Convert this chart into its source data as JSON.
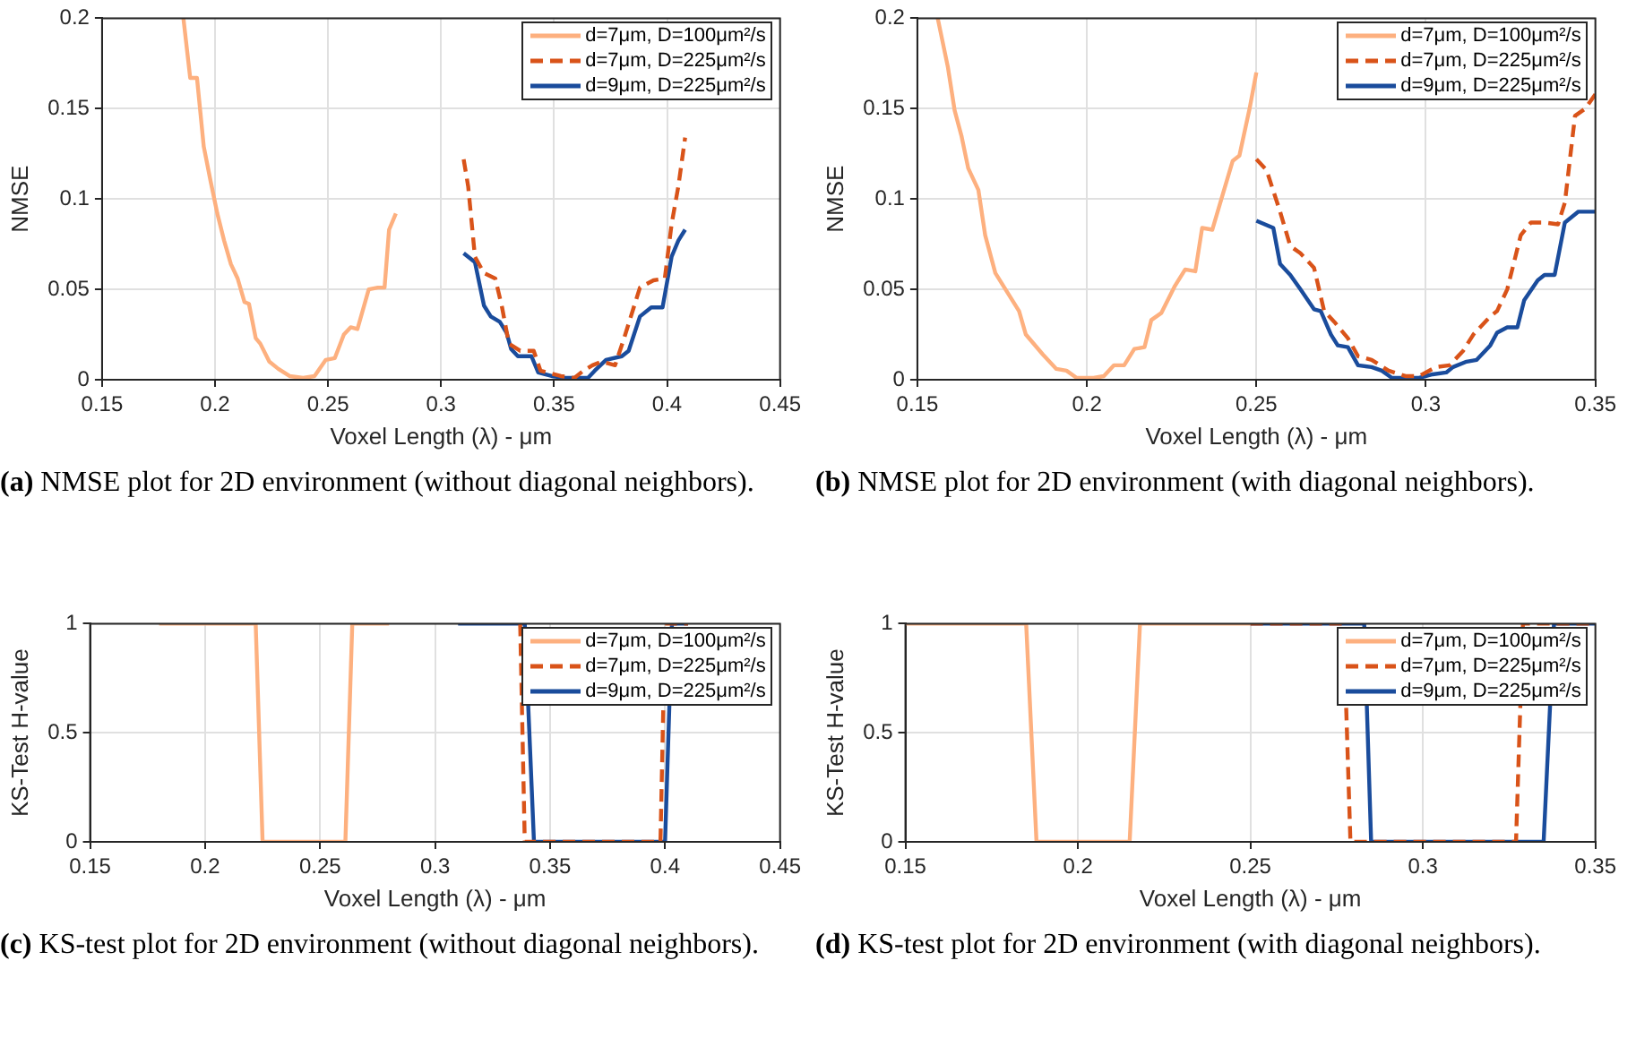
{
  "chart_data": [
    {
      "type": "line",
      "xlabel": "Voxel Length (λ) - μm",
      "ylabel": "NMSE",
      "xlim": [
        0.15,
        0.45
      ],
      "xticks": [
        0.15,
        0.2,
        0.25,
        0.3,
        0.35,
        0.4,
        0.45
      ],
      "ylim": [
        0,
        0.2
      ],
      "yticks": [
        0,
        0.05,
        0.1,
        0.15,
        0.2
      ],
      "grid": true,
      "legend": "top right",
      "annotations": [
        "(a) NMSE plot for 2D environment (without diagonal neighbors)."
      ],
      "series": [
        {
          "name": "d=7μm, D=100μm²/s",
          "color": "#fdb07f",
          "x": [
            0.186,
            0.189,
            0.192,
            0.195,
            0.198,
            0.201,
            0.204,
            0.207,
            0.21,
            0.213,
            0.215,
            0.218,
            0.22,
            0.224,
            0.228,
            0.233,
            0.239,
            0.244,
            0.249,
            0.253,
            0.257,
            0.26,
            0.263,
            0.268,
            0.272,
            0.275,
            0.277,
            0.28
          ],
          "values": [
            0.2,
            0.167,
            0.167,
            0.129,
            0.11,
            0.092,
            0.077,
            0.064,
            0.056,
            0.043,
            0.042,
            0.023,
            0.02,
            0.01,
            0.006,
            0.002,
            0.001,
            0.002,
            0.011,
            0.012,
            0.025,
            0.029,
            0.028,
            0.05,
            0.051,
            0.051,
            0.083,
            0.092
          ]
        },
        {
          "name": "d=7μm, D=225μm²/s",
          "color": "#d95319",
          "line_style": "dashed",
          "x": [
            0.31,
            0.312,
            0.315,
            0.319,
            0.324,
            0.327,
            0.33,
            0.335,
            0.341,
            0.344,
            0.353,
            0.359,
            0.363,
            0.367,
            0.371,
            0.377,
            0.381,
            0.388,
            0.394,
            0.399,
            0.402,
            0.405,
            0.408
          ],
          "values": [
            0.122,
            0.107,
            0.068,
            0.059,
            0.056,
            0.04,
            0.02,
            0.016,
            0.016,
            0.005,
            0.002,
            0.001,
            0.005,
            0.008,
            0.01,
            0.008,
            0.023,
            0.051,
            0.055,
            0.056,
            0.086,
            0.107,
            0.134
          ]
        },
        {
          "name": "d=9μm, D=225μm²/s",
          "color": "#1a4c9c",
          "x": [
            0.31,
            0.315,
            0.319,
            0.322,
            0.326,
            0.329,
            0.331,
            0.334,
            0.34,
            0.343,
            0.349,
            0.355,
            0.365,
            0.368,
            0.373,
            0.38,
            0.383,
            0.388,
            0.393,
            0.398,
            0.402,
            0.405,
            0.408
          ],
          "values": [
            0.07,
            0.065,
            0.041,
            0.035,
            0.032,
            0.026,
            0.017,
            0.013,
            0.013,
            0.004,
            0.002,
            0.001,
            0.001,
            0.005,
            0.011,
            0.013,
            0.016,
            0.035,
            0.04,
            0.04,
            0.068,
            0.077,
            0.083
          ]
        }
      ]
    },
    {
      "type": "line",
      "xlabel": "Voxel Length (λ) - μm",
      "ylabel": "NMSE",
      "xlim": [
        0.15,
        0.35
      ],
      "xticks": [
        0.15,
        0.2,
        0.25,
        0.3,
        0.35
      ],
      "ylim": [
        0,
        0.2
      ],
      "yticks": [
        0,
        0.05,
        0.1,
        0.15,
        0.2
      ],
      "grid": true,
      "legend": "top right",
      "annotations": [
        "(b) NMSE plot for 2D environment (with diagonal neighbors)."
      ],
      "series": [
        {
          "name": "d=7μm, D=100μm²/s",
          "color": "#fdb07f",
          "x": [
            0.156,
            0.159,
            0.161,
            0.163,
            0.165,
            0.168,
            0.17,
            0.173,
            0.176,
            0.18,
            0.182,
            0.187,
            0.191,
            0.194,
            0.197,
            0.202,
            0.205,
            0.208,
            0.211,
            0.214,
            0.217,
            0.219,
            0.222,
            0.226,
            0.229,
            0.232,
            0.234,
            0.237,
            0.24,
            0.243,
            0.245,
            0.248,
            0.25
          ],
          "values": [
            0.2,
            0.173,
            0.149,
            0.135,
            0.117,
            0.105,
            0.08,
            0.059,
            0.05,
            0.038,
            0.025,
            0.014,
            0.006,
            0.005,
            0.001,
            0.001,
            0.002,
            0.008,
            0.008,
            0.017,
            0.018,
            0.033,
            0.037,
            0.052,
            0.061,
            0.06,
            0.084,
            0.083,
            0.102,
            0.121,
            0.124,
            0.15,
            0.17
          ]
        },
        {
          "name": "d=7μm, D=225μm²/s",
          "color": "#d95319",
          "line_style": "dashed",
          "x": [
            0.25,
            0.253,
            0.257,
            0.26,
            0.263,
            0.267,
            0.27,
            0.273,
            0.277,
            0.28,
            0.284,
            0.289,
            0.294,
            0.298,
            0.303,
            0.307,
            0.311,
            0.314,
            0.319,
            0.321,
            0.324,
            0.328,
            0.331,
            0.335,
            0.339,
            0.341,
            0.344,
            0.347,
            0.35
          ],
          "values": [
            0.122,
            0.116,
            0.093,
            0.074,
            0.07,
            0.062,
            0.038,
            0.032,
            0.023,
            0.013,
            0.011,
            0.005,
            0.002,
            0.002,
            0.007,
            0.008,
            0.016,
            0.025,
            0.035,
            0.038,
            0.05,
            0.08,
            0.087,
            0.087,
            0.086,
            0.098,
            0.146,
            0.15,
            0.158
          ]
        },
        {
          "name": "d=9μm, D=225μm²/s",
          "color": "#1a4c9c",
          "x": [
            0.25,
            0.255,
            0.257,
            0.26,
            0.263,
            0.267,
            0.269,
            0.272,
            0.274,
            0.277,
            0.28,
            0.284,
            0.287,
            0.29,
            0.293,
            0.298,
            0.302,
            0.306,
            0.308,
            0.312,
            0.315,
            0.319,
            0.321,
            0.324,
            0.327,
            0.329,
            0.333,
            0.335,
            0.338,
            0.341,
            0.345,
            0.35
          ],
          "values": [
            0.088,
            0.084,
            0.064,
            0.058,
            0.05,
            0.039,
            0.038,
            0.025,
            0.019,
            0.018,
            0.008,
            0.007,
            0.005,
            0.001,
            0.001,
            0.001,
            0.003,
            0.004,
            0.007,
            0.01,
            0.011,
            0.019,
            0.026,
            0.029,
            0.029,
            0.044,
            0.055,
            0.058,
            0.058,
            0.087,
            0.093,
            0.093
          ]
        }
      ]
    },
    {
      "type": "line",
      "xlabel": "Voxel Length (λ) - μm",
      "ylabel": "KS-Test H-value",
      "xlim": [
        0.15,
        0.45
      ],
      "xticks": [
        0.15,
        0.2,
        0.25,
        0.3,
        0.35,
        0.4,
        0.45
      ],
      "ylim": [
        0,
        1
      ],
      "yticks": [
        0,
        0.5,
        1
      ],
      "grid": true,
      "legend": "top right",
      "annotations": [
        "(c) KS-test plot for 2D environment (without diagonal neighbors)."
      ],
      "series": [
        {
          "name": "d=7μm, D=100μm²/s",
          "color": "#fdb07f",
          "x": [
            0.18,
            0.222,
            0.225,
            0.261,
            0.264,
            0.28
          ],
          "values": [
            1,
            1,
            0,
            0,
            1,
            1
          ]
        },
        {
          "name": "d=7μm, D=225μm²/s",
          "color": "#d95319",
          "line_style": "dashed",
          "x": [
            0.337,
            0.339,
            0.398,
            0.4,
            0.41
          ],
          "values": [
            1,
            0,
            0,
            1,
            1
          ]
        },
        {
          "name": "d=9μm, D=225μm²/s",
          "color": "#1a4c9c",
          "x": [
            0.31,
            0.339,
            0.343,
            0.4,
            0.403,
            0.41
          ],
          "values": [
            1,
            1,
            0,
            0,
            1,
            1
          ]
        }
      ]
    },
    {
      "type": "line",
      "xlabel": "Voxel Length (λ) - μm",
      "ylabel": "KS-Test H-value",
      "xlim": [
        0.15,
        0.35
      ],
      "xticks": [
        0.15,
        0.2,
        0.25,
        0.3,
        0.35
      ],
      "ylim": [
        0,
        1
      ],
      "yticks": [
        0,
        0.5,
        1
      ],
      "grid": true,
      "legend": "top right",
      "annotations": [
        "(d) KS-test plot for 2D environment (with diagonal neighbors)."
      ],
      "series": [
        {
          "name": "d=7μm, D=100μm²/s",
          "color": "#fdb07f",
          "x": [
            0.15,
            0.185,
            0.188,
            0.215,
            0.218,
            0.25
          ],
          "values": [
            1,
            1,
            0,
            0,
            1,
            1
          ]
        },
        {
          "name": "d=7μm, D=225μm²/s",
          "color": "#d95319",
          "line_style": "dashed",
          "x": [
            0.25,
            0.277,
            0.279,
            0.327,
            0.329,
            0.35
          ],
          "values": [
            1,
            1,
            0,
            0,
            1,
            1
          ]
        },
        {
          "name": "d=9μm, D=225μm²/s",
          "color": "#1a4c9c",
          "x": [
            0.25,
            0.283,
            0.285,
            0.335,
            0.338,
            0.35
          ],
          "values": [
            1,
            1,
            0,
            0,
            1,
            1
          ]
        }
      ]
    }
  ]
}
